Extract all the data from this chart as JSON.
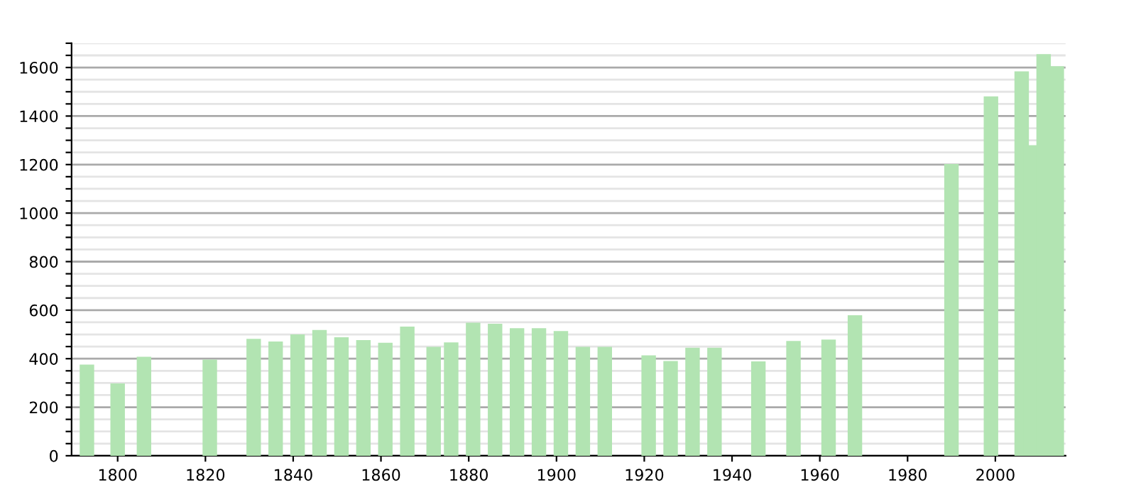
{
  "chart_data": {
    "type": "bar",
    "x": [
      1793,
      1800,
      1806,
      1821,
      1831,
      1836,
      1841,
      1846,
      1851,
      1856,
      1861,
      1866,
      1872,
      1876,
      1881,
      1886,
      1891,
      1896,
      1901,
      1906,
      1911,
      1921,
      1926,
      1931,
      1936,
      1946,
      1954,
      1962,
      1968,
      1990,
      1999,
      2006,
      2008,
      2011,
      2014
    ],
    "values": [
      376,
      298,
      408,
      396,
      482,
      471,
      500,
      518,
      488,
      477,
      466,
      532,
      449,
      467,
      548,
      544,
      526,
      526,
      514,
      449,
      449,
      414,
      390,
      445,
      445,
      389,
      473,
      479,
      579,
      1202,
      1481,
      1584,
      1280,
      1655,
      1605
    ],
    "color": "#b2e4b2",
    "xlim": [
      1789.5,
      2016
    ],
    "xticks": [
      1800,
      1820,
      1840,
      1860,
      1880,
      1900,
      1920,
      1940,
      1960,
      1980,
      2000
    ],
    "ylim": [
      0,
      1700
    ],
    "yticks": [
      0,
      {
        "value": 50,
        "label": null
      },
      {
        "value": 100,
        "label": null
      },
      {
        "value": 150,
        "label": null
      },
      200,
      {
        "value": 250,
        "label": null
      },
      {
        "value": 300,
        "label": null
      },
      {
        "value": 350,
        "label": null
      },
      400,
      {
        "value": 450,
        "label": null
      },
      {
        "value": 500,
        "label": null
      },
      {
        "value": 550,
        "label": null
      },
      600,
      {
        "value": 650,
        "label": null
      },
      {
        "value": 700,
        "label": null
      },
      {
        "value": 750,
        "label": null
      },
      800,
      {
        "value": 850,
        "label": null
      },
      {
        "value": 900,
        "label": null
      },
      {
        "value": 950,
        "label": null
      },
      1000,
      {
        "value": 1050,
        "label": null
      },
      {
        "value": 1100,
        "label": null
      },
      {
        "value": 1150,
        "label": null
      },
      1200,
      {
        "value": 1250,
        "label": null
      },
      {
        "value": 1300,
        "label": null
      },
      {
        "value": 1350,
        "label": null
      },
      1400,
      {
        "value": 1450,
        "label": null
      },
      {
        "value": 1500,
        "label": null
      },
      {
        "value": 1550,
        "label": null
      },
      1600,
      {
        "value": 1650,
        "label": null
      },
      {
        "value": 1700,
        "label": null
      }
    ],
    "grid": "y"
  }
}
